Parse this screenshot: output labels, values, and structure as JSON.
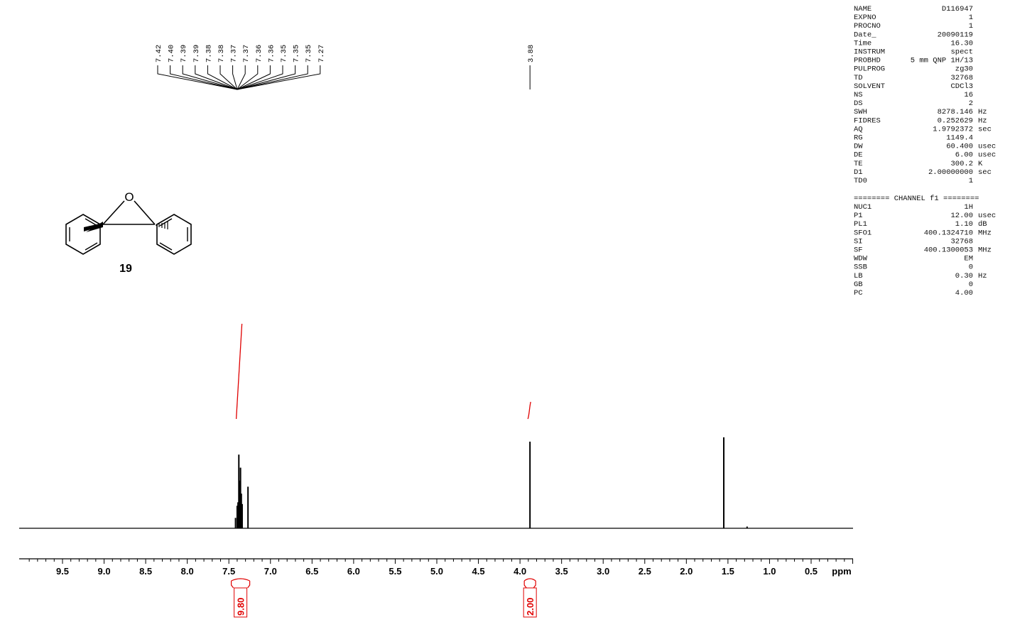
{
  "chart_data": {
    "type": "line",
    "x_unit_label": "ppm",
    "xlim": [
      10.0,
      0.0
    ],
    "x_ticks": [
      9.5,
      9.0,
      8.5,
      8.0,
      7.5,
      7.0,
      6.5,
      6.0,
      5.5,
      5.0,
      4.5,
      4.0,
      3.5,
      3.0,
      2.5,
      2.0,
      1.5,
      1.0,
      0.5
    ],
    "x_tick_labels": [
      "9.5",
      "9.0",
      "8.5",
      "8.0",
      "7.5",
      "7.0",
      "6.5",
      "6.0",
      "5.5",
      "5.0",
      "4.5",
      "4.0",
      "3.5",
      "3.0",
      "2.5",
      "2.0",
      "1.5",
      "1.0",
      "0.5"
    ],
    "peaks": [
      {
        "ppm": 7.42,
        "intensity": 0.12
      },
      {
        "ppm": 7.4,
        "intensity": 0.26
      },
      {
        "ppm": 7.39,
        "intensity": 0.3
      },
      {
        "ppm": 7.38,
        "intensity": 0.85
      },
      {
        "ppm": 7.37,
        "intensity": 0.55
      },
      {
        "ppm": 7.36,
        "intensity": 0.7
      },
      {
        "ppm": 7.35,
        "intensity": 0.4
      },
      {
        "ppm": 7.34,
        "intensity": 0.28
      },
      {
        "ppm": 7.27,
        "intensity": 0.48
      },
      {
        "ppm": 3.88,
        "intensity": 1.0
      },
      {
        "ppm": 1.55,
        "intensity": 1.05
      },
      {
        "ppm": 1.27,
        "intensity": 0.02
      }
    ],
    "peak_labels_group1": [
      "7.42",
      "7.40",
      "7.39",
      "7.39",
      "7.38",
      "7.38",
      "7.37",
      "7.37",
      "7.36",
      "7.36",
      "7.35",
      "7.35",
      "7.35",
      "7.27"
    ],
    "peak_label_single": "3.88",
    "integrals": [
      {
        "ppm_center": 7.36,
        "value": "9.80"
      },
      {
        "ppm_center": 3.88,
        "value": "2.00"
      }
    ],
    "grid": false
  },
  "compound": {
    "number": "19",
    "oxygen_label": "O"
  },
  "parameters": [
    {
      "key": "NAME",
      "value": "D116947"
    },
    {
      "key": "EXPNO",
      "value": "1"
    },
    {
      "key": "PROCNO",
      "value": "1"
    },
    {
      "key": "Date_",
      "value": "20090119"
    },
    {
      "key": "Time",
      "value": "16.30"
    },
    {
      "key": "INSTRUM",
      "value": "spect"
    },
    {
      "key": "PROBHD",
      "value": "5 mm QNP 1H/13"
    },
    {
      "key": "PULPROG",
      "value": "zg30"
    },
    {
      "key": "TD",
      "value": "32768"
    },
    {
      "key": "SOLVENT",
      "value": "CDCl3"
    },
    {
      "key": "NS",
      "value": "16"
    },
    {
      "key": "DS",
      "value": "2"
    },
    {
      "key": "SWH",
      "value": "8278.146 Hz"
    },
    {
      "key": "FIDRES",
      "value": "0.252629 Hz"
    },
    {
      "key": "AQ",
      "value": "1.9792372 sec"
    },
    {
      "key": "RG",
      "value": "1149.4"
    },
    {
      "key": "DW",
      "value": "60.400 usec"
    },
    {
      "key": "DE",
      "value": "6.00 usec"
    },
    {
      "key": "TE",
      "value": "300.2 K"
    },
    {
      "key": "D1",
      "value": "2.00000000 sec"
    },
    {
      "key": "TD0",
      "value": "1"
    }
  ],
  "channel_header": "======== CHANNEL f1 ========",
  "channel_parameters": [
    {
      "key": "NUC1",
      "value": "1H"
    },
    {
      "key": "P1",
      "value": "12.00 usec"
    },
    {
      "key": "PL1",
      "value": "1.10 dB"
    },
    {
      "key": "SFO1",
      "value": "400.1324710 MHz"
    },
    {
      "key": "SI",
      "value": "32768"
    },
    {
      "key": "SF",
      "value": "400.1300053 MHz"
    },
    {
      "key": "WDW",
      "value": "EM"
    },
    {
      "key": "SSB",
      "value": "0"
    },
    {
      "key": "LB",
      "value": "0.30 Hz"
    },
    {
      "key": "GB",
      "value": "0"
    },
    {
      "key": "PC",
      "value": "4.00"
    }
  ],
  "colors": {
    "spectrum": "#000000",
    "integral": "#e00000"
  }
}
